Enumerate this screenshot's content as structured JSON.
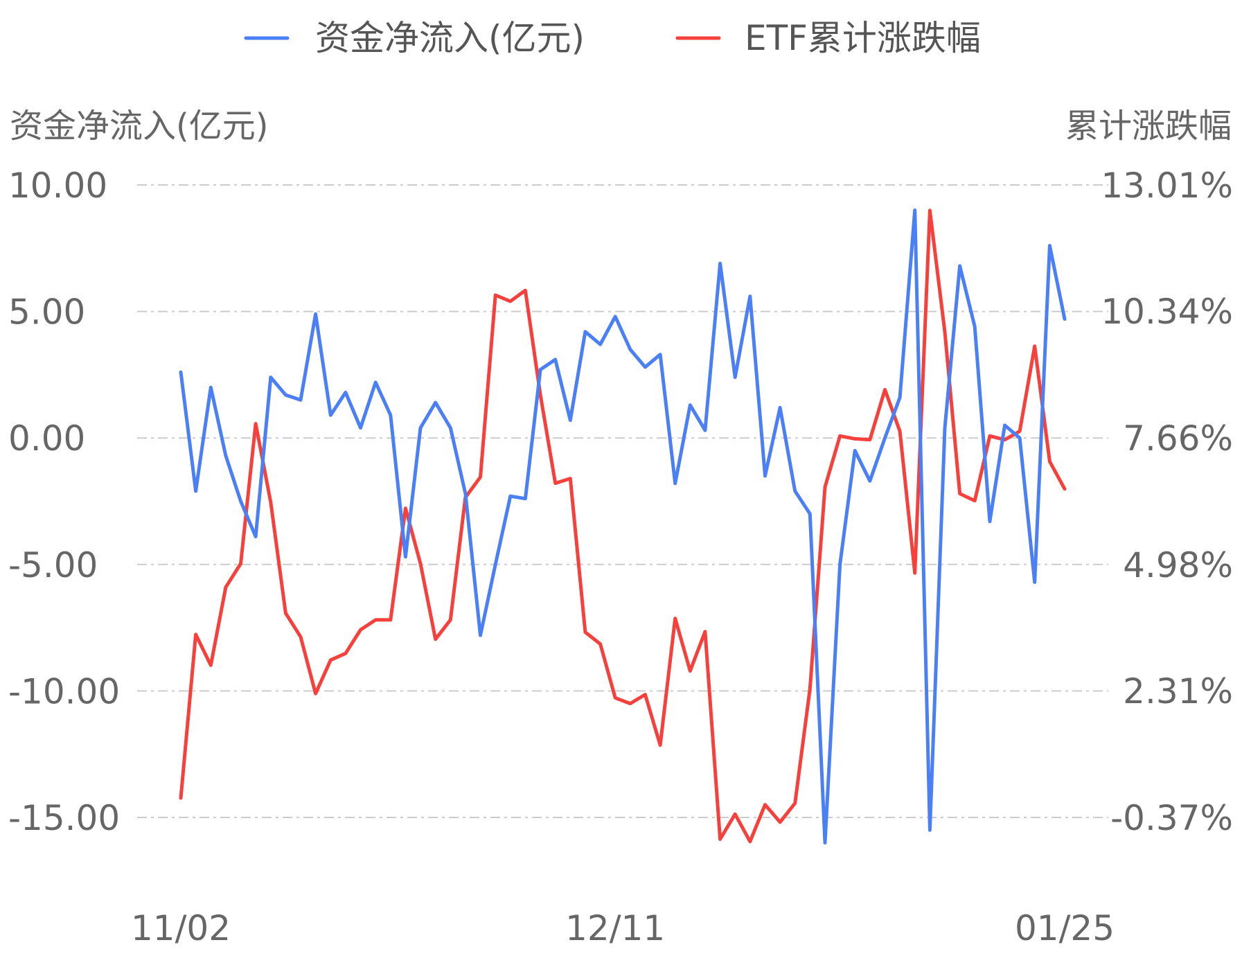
{
  "chart_data": {
    "type": "line",
    "title": "",
    "legend": {
      "placement": "top-center",
      "items": [
        {
          "label": "资金净流入(亿元)",
          "color": "#4a7ff5"
        },
        {
          "label": "ETF累计涨跌幅",
          "color": "#f5403c"
        }
      ]
    },
    "left_axis": {
      "title": "资金净流入(亿元)",
      "ticks": [
        "10.00",
        "5.00",
        "0.00",
        "-5.00",
        "-10.00",
        "-15.00"
      ],
      "tick_values": [
        10,
        5,
        0,
        -5,
        -10,
        -15
      ],
      "range": [
        -15,
        10
      ]
    },
    "right_axis": {
      "title": "累计涨跌幅",
      "ticks": [
        "13.01%",
        "10.34%",
        "7.66%",
        "4.98%",
        "2.31%",
        "-0.37%"
      ],
      "tick_values": [
        13.01,
        10.34,
        7.66,
        4.98,
        2.31,
        -0.37
      ],
      "range": [
        -0.37,
        13.01
      ],
      "unit": "%"
    },
    "x_axis": {
      "tick_labels": [
        "11/02",
        "12/11",
        "01/25"
      ],
      "tick_indices": [
        0,
        29,
        59
      ]
    },
    "grid": true,
    "series": [
      {
        "name": "资金净流入(亿元)",
        "axis": "left",
        "color": "#4a7ff5",
        "values": [
          2.6,
          -2.1,
          2.0,
          -0.7,
          -2.5,
          -3.9,
          2.4,
          1.7,
          1.5,
          4.9,
          0.9,
          1.8,
          0.4,
          2.2,
          0.9,
          -4.7,
          0.4,
          1.4,
          0.4,
          -2.2,
          -7.8,
          -5.0,
          -2.3,
          -2.4,
          2.7,
          3.1,
          0.7,
          4.2,
          3.7,
          4.8,
          3.5,
          2.8,
          3.3,
          -1.8,
          1.3,
          0.3,
          6.9,
          2.4,
          5.6,
          -1.5,
          1.2,
          -2.1,
          -3.0,
          -16.0,
          -5.0,
          -0.5,
          -1.7,
          0.0,
          1.6,
          9.0,
          -15.5,
          0.4,
          6.8,
          4.4,
          -3.3,
          0.5,
          0.0,
          -5.7,
          7.6,
          4.7
        ]
      },
      {
        "name": "ETF累计涨跌幅",
        "axis": "right",
        "color": "#f5403c",
        "values": [
          0.04,
          3.5,
          2.85,
          4.5,
          5.0,
          7.96,
          6.3,
          3.95,
          3.45,
          2.25,
          2.96,
          3.1,
          3.6,
          3.81,
          3.81,
          6.17,
          5.0,
          3.4,
          3.81,
          6.4,
          6.83,
          10.68,
          10.55,
          10.78,
          8.57,
          6.7,
          6.8,
          3.55,
          3.3,
          2.16,
          2.04,
          2.23,
          1.16,
          3.84,
          2.73,
          3.56,
          -0.83,
          -0.3,
          -0.88,
          -0.1,
          -0.47,
          -0.07,
          2.35,
          6.62,
          7.7,
          7.64,
          7.62,
          8.68,
          7.8,
          4.8,
          12.47,
          9.9,
          6.48,
          6.33,
          7.7,
          7.62,
          7.8,
          9.6,
          7.16,
          6.58
        ]
      }
    ]
  }
}
